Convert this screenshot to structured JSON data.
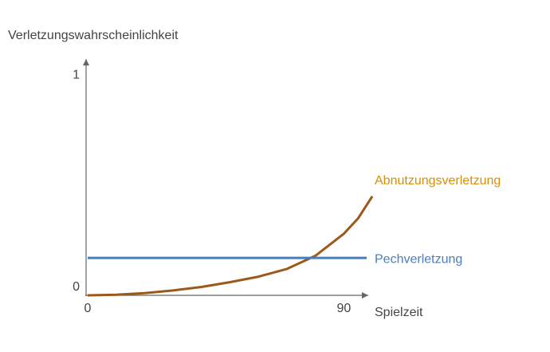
{
  "chart_data": {
    "type": "line",
    "y_label": "Verletzungswahrscheinlichkeit",
    "x_label": "Spielzeit",
    "xlim": [
      0,
      98
    ],
    "ylim": [
      0,
      1.07
    ],
    "xticks": [
      0,
      90
    ],
    "yticks": [
      0,
      1
    ],
    "series": [
      {
        "name": "Abnutzungsverletzung",
        "color": "#9b5a1a",
        "label_color": "#d4900a",
        "x": [
          0,
          10,
          20,
          30,
          40,
          50,
          60,
          70,
          80,
          90,
          95,
          100
        ],
        "values": [
          0,
          0.003,
          0.01,
          0.022,
          0.038,
          0.06,
          0.085,
          0.12,
          0.18,
          0.28,
          0.35,
          0.45
        ]
      },
      {
        "name": "Pechverletzung",
        "color": "#4a7ebb",
        "label_color": "#4a7ebb",
        "x": [
          0,
          98
        ],
        "values": [
          0.17,
          0.17
        ]
      }
    ]
  }
}
